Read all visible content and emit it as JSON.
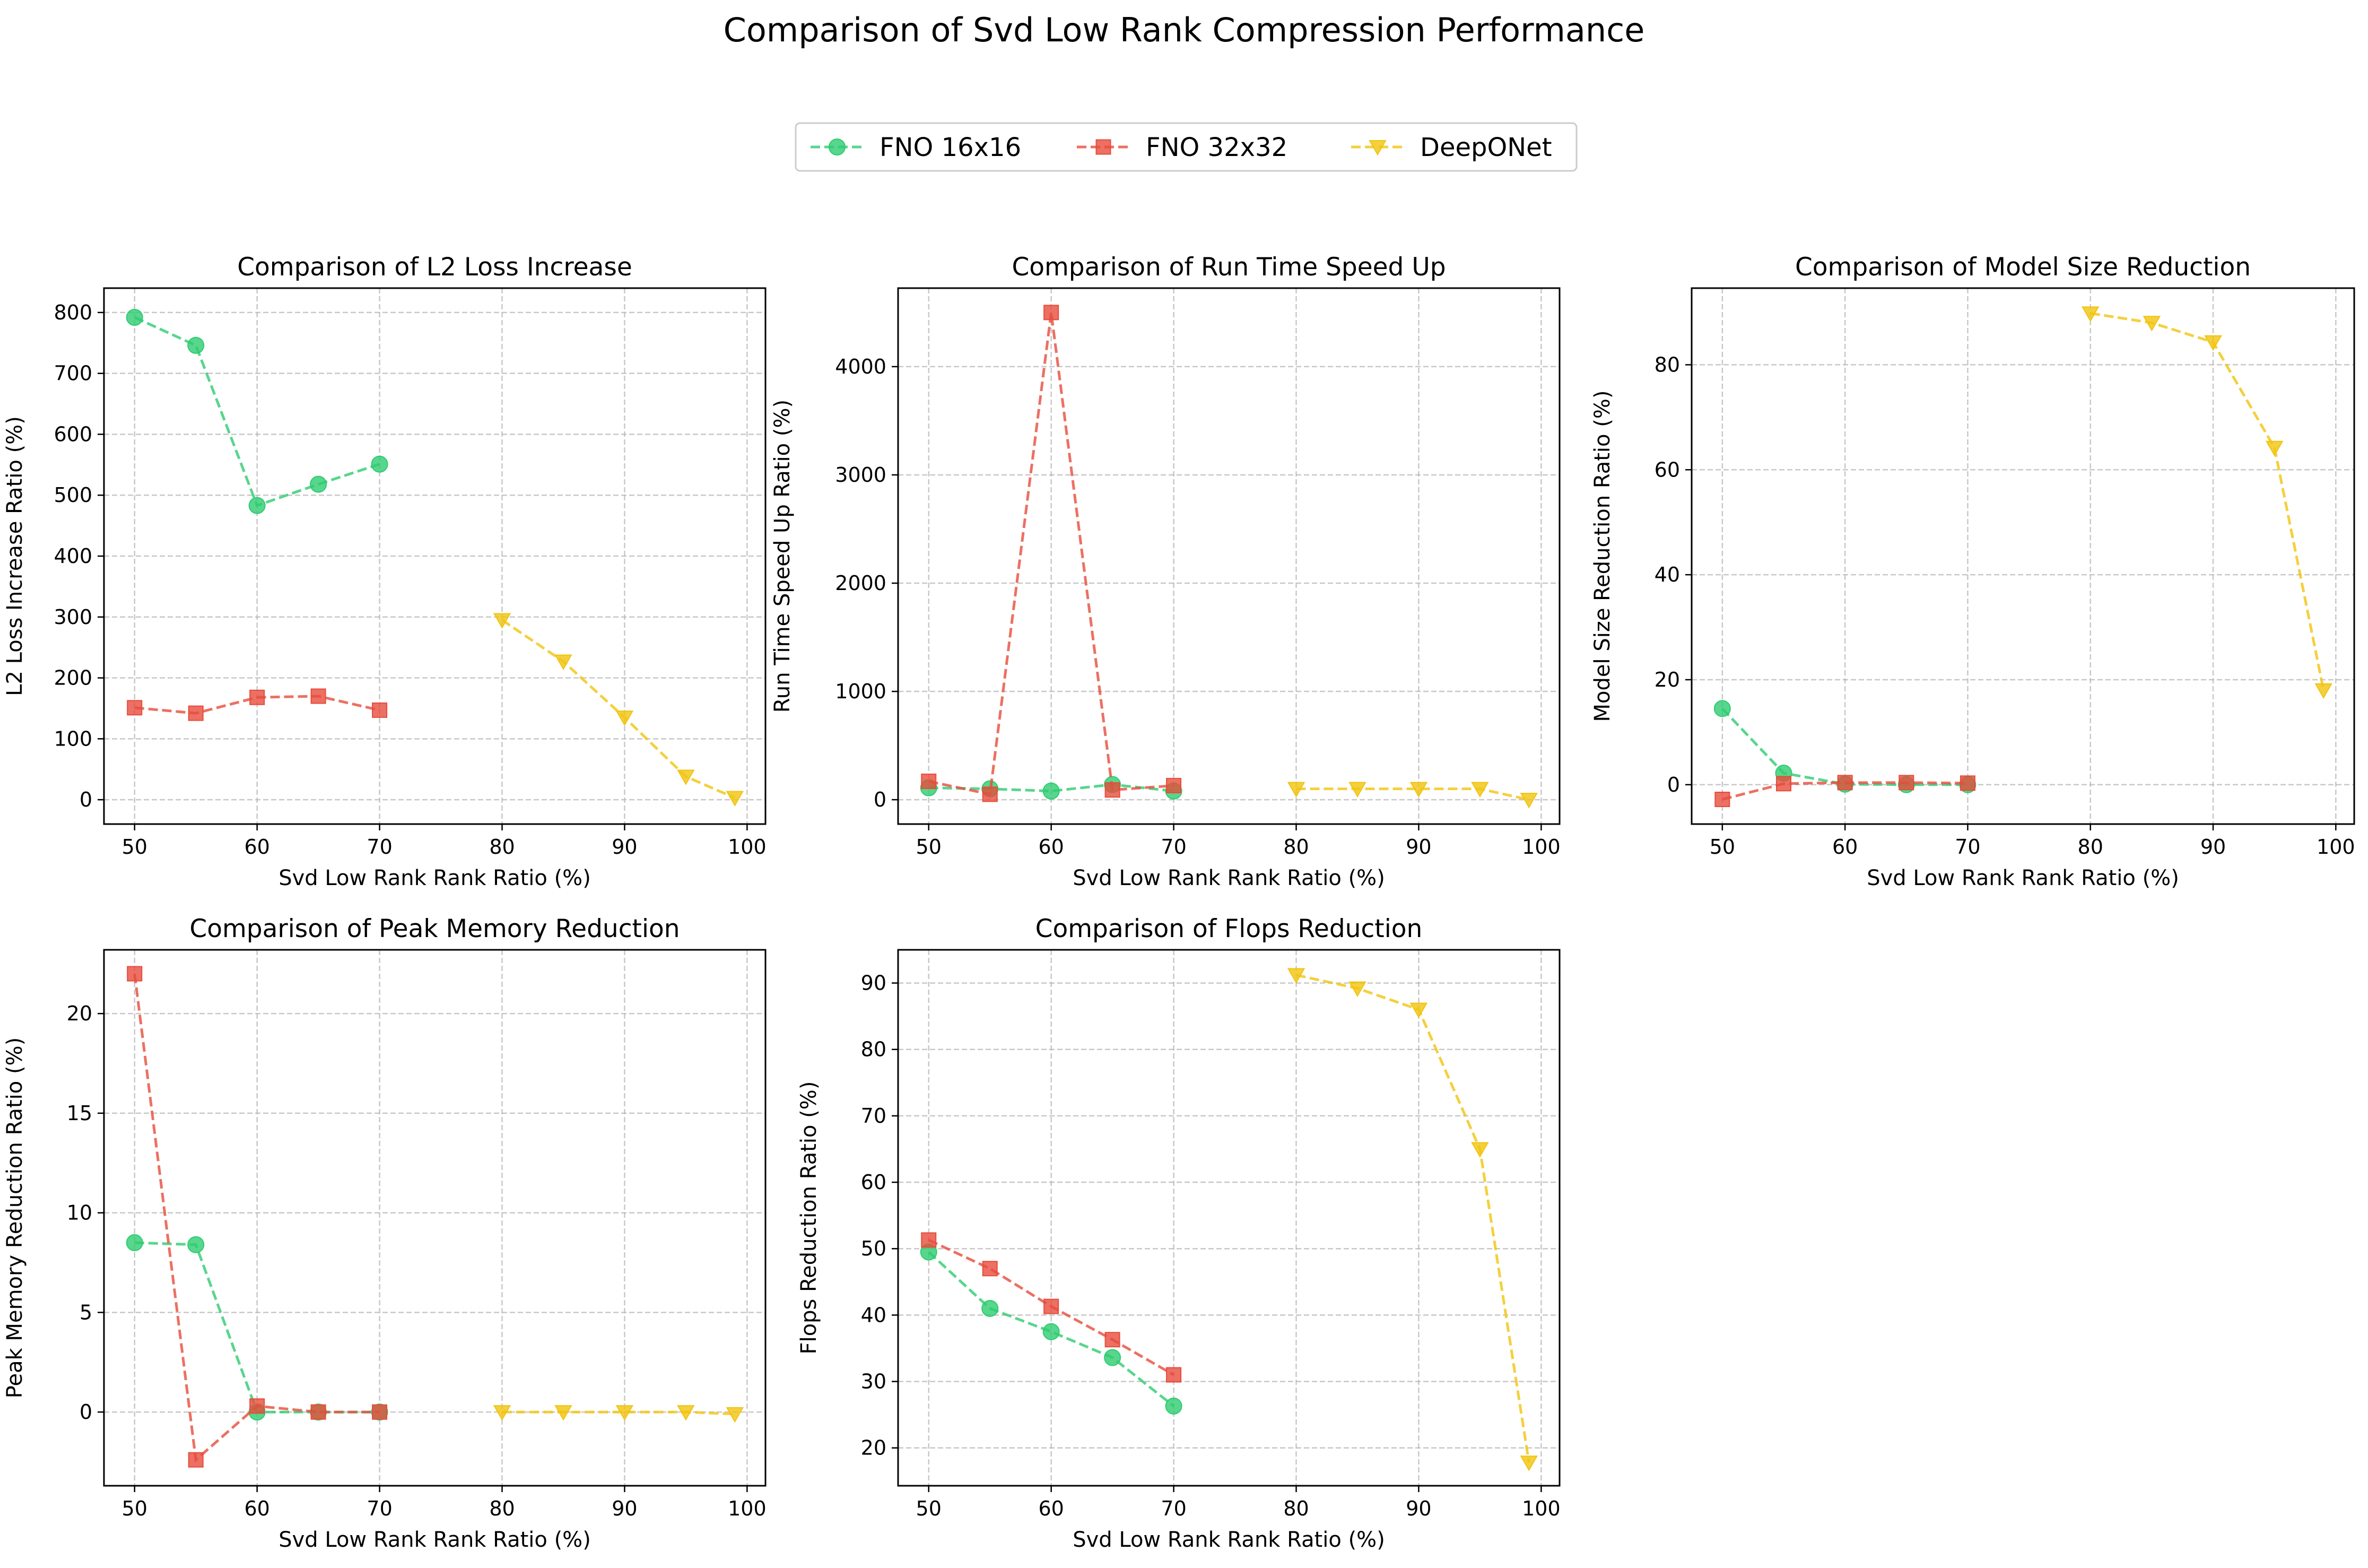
{
  "figure": {
    "suptitle": "Comparison of Svd Low Rank Compression Performance",
    "legend": {
      "placement": "top-center",
      "entries": [
        {
          "name": "FNO 16x16",
          "color": "#2ecc71",
          "marker": "circle"
        },
        {
          "name": "FNO 32x32",
          "color": "#e74c3c",
          "marker": "square"
        },
        {
          "name": "DeepONet",
          "color": "#f1c40f",
          "marker": "triangle-down"
        }
      ]
    }
  },
  "chart_data": [
    {
      "type": "line",
      "title": "Comparison of L2 Loss Increase",
      "xlabel": "Svd Low Rank Rank Ratio (%)",
      "ylabel": "L2 Loss Increase Ratio (%)",
      "xlim": [
        47.5,
        101.5
      ],
      "ylim": [
        -40,
        840
      ],
      "xticks": [
        50,
        60,
        70,
        80,
        90,
        100
      ],
      "yticks": [
        0,
        100,
        200,
        300,
        400,
        500,
        600,
        700,
        800
      ],
      "grid": true,
      "series": [
        {
          "name": "FNO 16x16",
          "x": [
            50,
            55,
            60,
            65,
            70
          ],
          "y": [
            792,
            746,
            483,
            518,
            551
          ]
        },
        {
          "name": "FNO 32x32",
          "x": [
            50,
            55,
            60,
            65,
            70
          ],
          "y": [
            151,
            142,
            168,
            170,
            147
          ]
        },
        {
          "name": "DeepONet",
          "x": [
            80,
            85,
            90,
            95,
            99
          ],
          "y": [
            295,
            227,
            135,
            38,
            3
          ]
        }
      ]
    },
    {
      "type": "line",
      "title": "Comparison of Run Time Speed Up",
      "xlabel": "Svd Low Rank Rank Ratio (%)",
      "ylabel": "Run Time Speed Up Ratio (%)",
      "xlim": [
        47.5,
        101.5
      ],
      "ylim": [
        -225,
        4725
      ],
      "xticks": [
        50,
        60,
        70,
        80,
        90,
        100
      ],
      "yticks": [
        0,
        1000,
        2000,
        3000,
        4000
      ],
      "grid": true,
      "series": [
        {
          "name": "FNO 16x16",
          "x": [
            50,
            55,
            60,
            65,
            70
          ],
          "y": [
            110,
            100,
            80,
            140,
            80
          ]
        },
        {
          "name": "FNO 32x32",
          "x": [
            50,
            55,
            60,
            65,
            70
          ],
          "y": [
            170,
            50,
            4500,
            90,
            130
          ]
        },
        {
          "name": "DeepONet",
          "x": [
            80,
            85,
            90,
            95,
            99
          ],
          "y": [
            100,
            100,
            100,
            100,
            0
          ]
        }
      ]
    },
    {
      "type": "line",
      "title": "Comparison of Model Size Reduction",
      "xlabel": "Svd Low Rank Rank Ratio (%)",
      "ylabel": "Model Size Reduction Ratio (%)",
      "xlim": [
        47.5,
        101.5
      ],
      "ylim": [
        -7.5,
        94.6
      ],
      "xticks": [
        50,
        60,
        70,
        80,
        90,
        100
      ],
      "yticks": [
        0,
        20,
        40,
        60,
        80
      ],
      "grid": true,
      "series": [
        {
          "name": "FNO 16x16",
          "x": [
            50,
            55,
            60,
            65,
            70
          ],
          "y": [
            14.5,
            2.2,
            0.1,
            0.0,
            0.0
          ]
        },
        {
          "name": "FNO 32x32",
          "x": [
            50,
            55,
            60,
            65,
            70
          ],
          "y": [
            -2.8,
            0.2,
            0.4,
            0.4,
            0.3
          ]
        },
        {
          "name": "DeepONet",
          "x": [
            80,
            85,
            90,
            95,
            99
          ],
          "y": [
            89.8,
            88.0,
            84.3,
            64.2,
            18.0
          ]
        }
      ]
    },
    {
      "type": "line",
      "title": "Comparison of Peak Memory Reduction",
      "xlabel": "Svd Low Rank Rank Ratio (%)",
      "ylabel": "Peak Memory Reduction Ratio (%)",
      "xlim": [
        47.5,
        101.5
      ],
      "ylim": [
        -3.7,
        23.2
      ],
      "xticks": [
        50,
        60,
        70,
        80,
        90,
        100
      ],
      "yticks": [
        0,
        5,
        10,
        15,
        20
      ],
      "grid": true,
      "series": [
        {
          "name": "FNO 16x16",
          "x": [
            50,
            55,
            60,
            65,
            70
          ],
          "y": [
            8.5,
            8.4,
            0.0,
            0.0,
            0.0
          ]
        },
        {
          "name": "FNO 32x32",
          "x": [
            50,
            55,
            60,
            65,
            70
          ],
          "y": [
            22.0,
            -2.4,
            0.3,
            0.0,
            0.0
          ]
        },
        {
          "name": "DeepONet",
          "x": [
            80,
            85,
            90,
            95,
            99
          ],
          "y": [
            0.0,
            0.0,
            0.0,
            0.0,
            -0.1
          ]
        }
      ]
    },
    {
      "type": "line",
      "title": "Comparison of Flops Reduction",
      "xlabel": "Svd Low Rank Rank Ratio (%)",
      "ylabel": "Flops Reduction Ratio (%)",
      "xlim": [
        47.5,
        101.5
      ],
      "ylim": [
        14.3,
        95.0
      ],
      "xticks": [
        50,
        60,
        70,
        80,
        90,
        100
      ],
      "yticks": [
        20,
        30,
        40,
        50,
        60,
        70,
        80,
        90
      ],
      "grid": true,
      "series": [
        {
          "name": "FNO 16x16",
          "x": [
            50,
            55,
            60,
            65,
            70
          ],
          "y": [
            49.5,
            41.0,
            37.5,
            33.6,
            26.3
          ]
        },
        {
          "name": "FNO 32x32",
          "x": [
            50,
            55,
            60,
            65,
            70
          ],
          "y": [
            51.3,
            47.0,
            41.3,
            36.3,
            31.0
          ]
        },
        {
          "name": "DeepONet",
          "x": [
            80,
            85,
            90,
            95,
            99
          ],
          "y": [
            91.2,
            89.2,
            86.0,
            65.0,
            17.8
          ]
        }
      ]
    }
  ]
}
